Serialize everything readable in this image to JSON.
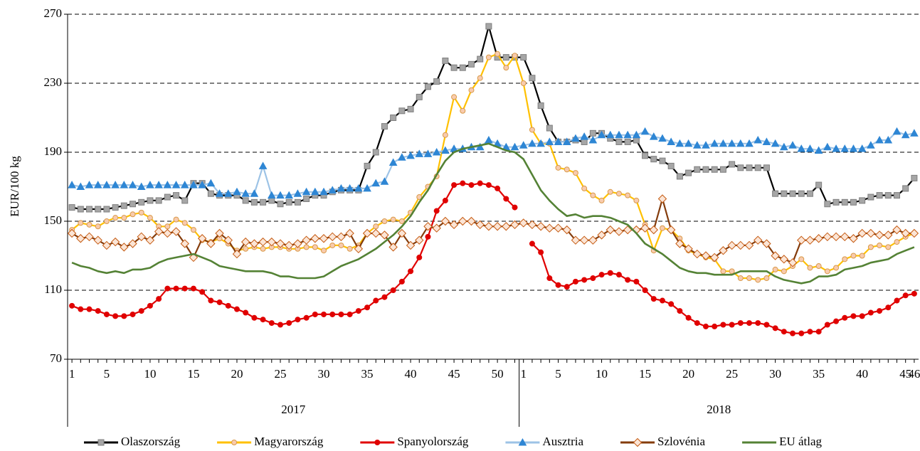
{
  "chart_data": {
    "type": "line",
    "y_label": "EUR/100 kg",
    "ylim": [
      70,
      270
    ],
    "yticks": [
      70,
      110,
      150,
      190,
      230,
      270
    ],
    "grid": true,
    "grid_style": "dashed",
    "legend": "bottom",
    "categories": [
      1,
      null,
      null,
      null,
      5,
      null,
      null,
      null,
      null,
      10,
      null,
      null,
      null,
      null,
      15,
      null,
      null,
      null,
      null,
      20,
      null,
      null,
      null,
      null,
      25,
      null,
      null,
      null,
      null,
      30,
      null,
      null,
      null,
      null,
      35,
      null,
      null,
      null,
      null,
      40,
      null,
      null,
      null,
      null,
      45,
      null,
      null,
      null,
      null,
      50,
      null,
      null,
      1,
      null,
      null,
      null,
      5,
      null,
      null,
      null,
      null,
      10,
      null,
      null,
      null,
      null,
      15,
      null,
      null,
      null,
      null,
      20,
      null,
      null,
      null,
      null,
      25,
      null,
      null,
      null,
      null,
      30,
      null,
      null,
      null,
      null,
      35,
      null,
      null,
      null,
      null,
      40,
      null,
      null,
      null,
      null,
      45,
      46
    ],
    "groups": [
      "2017",
      "2018"
    ],
    "series": [
      {
        "name": "Olaszország",
        "color": "#000000",
        "marker": "square",
        "marker_color": "#a6a6a6",
        "marker_edge": "#7f7f7f",
        "values": [
          158,
          157,
          157,
          157,
          157,
          158,
          159,
          160,
          161,
          162,
          162,
          164,
          165,
          162,
          172,
          172,
          166,
          165,
          165,
          165,
          162,
          161,
          161,
          162,
          160,
          161,
          161,
          163,
          165,
          165,
          167,
          168,
          168,
          168,
          182,
          190,
          205,
          210,
          214,
          215,
          222,
          228,
          231,
          243,
          239,
          239,
          241,
          244,
          263,
          245,
          245,
          245,
          245,
          233,
          217,
          204,
          196,
          196,
          197,
          196,
          201,
          201,
          198,
          196,
          196,
          197,
          188,
          186,
          185,
          182,
          176,
          178,
          180,
          180,
          180,
          180,
          183,
          181,
          181,
          181,
          181,
          166,
          166,
          166,
          166,
          166,
          171,
          160,
          161,
          161,
          161,
          162,
          164,
          165,
          165,
          165,
          169,
          175
        ]
      },
      {
        "name": "Magyarország",
        "color": "#ffc000",
        "marker": "circle",
        "marker_color": "#f8cbad",
        "marker_edge": "#d99a4a",
        "values": [
          145,
          149,
          148,
          147,
          150,
          152,
          152,
          154,
          155,
          152,
          147,
          147,
          151,
          149,
          145,
          139,
          138,
          140,
          137,
          133,
          134,
          135,
          134,
          135,
          135,
          134,
          134,
          135,
          135,
          133,
          136,
          136,
          134,
          136,
          143,
          147,
          150,
          151,
          150,
          155,
          164,
          170,
          176,
          200,
          222,
          214,
          226,
          233,
          245,
          247,
          239,
          246,
          230,
          203,
          195,
          195,
          181,
          180,
          178,
          169,
          165,
          162,
          167,
          166,
          165,
          162,
          148,
          133,
          146,
          145,
          140,
          133,
          131,
          129,
          128,
          121,
          121,
          117,
          117,
          116,
          117,
          122,
          121,
          124,
          128,
          123,
          124,
          121,
          123,
          128,
          130,
          130,
          135,
          136,
          135,
          138,
          141,
          143
        ]
      },
      {
        "name": "Spanyolország",
        "color": "#e00000",
        "marker": "circle",
        "marker_color": "#e00000",
        "marker_edge": "#e00000",
        "values": [
          101,
          99,
          99,
          98,
          96,
          95,
          95,
          96,
          98,
          101,
          105,
          111,
          111,
          111,
          111,
          109,
          104,
          103,
          101,
          99,
          97,
          94,
          93,
          91,
          90,
          91,
          93,
          94,
          96,
          96,
          96,
          96,
          96,
          98,
          100,
          104,
          106,
          110,
          115,
          121,
          129,
          141,
          156,
          162,
          171,
          172,
          171,
          172,
          171,
          169,
          163,
          158,
          null,
          137,
          132,
          117,
          113,
          112,
          115,
          116,
          117,
          119,
          120,
          119,
          116,
          115,
          110,
          105,
          104,
          102,
          98,
          94,
          91,
          89,
          89,
          90,
          90,
          91,
          91,
          91,
          90,
          88,
          86,
          85,
          85,
          86,
          86,
          90,
          92,
          94,
          95,
          95,
          97,
          98,
          100,
          104,
          107,
          108
        ]
      },
      {
        "name": "Ausztria",
        "color": "#9dc3e6",
        "marker": "triangle",
        "marker_color": "#2e86d4",
        "marker_edge": "#2e86d4",
        "values": [
          171,
          170,
          171,
          171,
          171,
          171,
          171,
          171,
          170,
          171,
          171,
          171,
          171,
          171,
          171,
          171,
          172,
          166,
          166,
          167,
          166,
          166,
          182,
          165,
          165,
          165,
          166,
          167,
          167,
          167,
          168,
          169,
          169,
          169,
          169,
          172,
          173,
          184,
          187,
          188,
          189,
          189,
          190,
          191,
          192,
          192,
          193,
          193,
          197,
          195,
          193,
          193,
          194,
          195,
          195,
          196,
          196,
          196,
          198,
          199,
          197,
          200,
          200,
          200,
          200,
          200,
          202,
          199,
          198,
          196,
          195,
          195,
          194,
          194,
          195,
          195,
          195,
          195,
          195,
          197,
          196,
          195,
          193,
          194,
          192,
          192,
          191,
          193,
          192,
          192,
          192,
          192,
          194,
          197,
          197,
          202,
          200,
          201
        ]
      },
      {
        "name": "Szlovénia",
        "color": "#843c0c",
        "marker": "diamond",
        "marker_color": "#fbe5d6",
        "marker_edge": "#c55a11",
        "values": [
          143,
          140,
          141,
          139,
          136,
          138,
          135,
          137,
          141,
          139,
          144,
          143,
          144,
          137,
          129,
          140,
          137,
          143,
          139,
          131,
          138,
          137,
          138,
          138,
          137,
          136,
          137,
          139,
          140,
          140,
          141,
          141,
          143,
          134,
          143,
          143,
          142,
          135,
          143,
          136,
          139,
          147,
          146,
          150,
          148,
          150,
          150,
          148,
          147,
          147,
          147,
          148,
          149,
          148,
          147,
          146,
          146,
          145,
          139,
          139,
          139,
          142,
          145,
          144,
          145,
          145,
          146,
          145,
          163,
          145,
          137,
          134,
          131,
          130,
          129,
          133,
          136,
          136,
          136,
          139,
          137,
          130,
          128,
          126,
          139,
          139,
          140,
          141,
          141,
          141,
          140,
          143,
          143,
          142,
          142,
          145,
          143,
          143
        ]
      },
      {
        "name": "EU átlag",
        "color": "#548235",
        "marker": "none",
        "values": [
          126,
          124,
          123,
          121,
          120,
          121,
          120,
          122,
          122,
          123,
          126,
          128,
          129,
          130,
          131,
          129,
          127,
          124,
          123,
          122,
          121,
          121,
          121,
          120,
          118,
          118,
          117,
          117,
          117,
          118,
          121,
          124,
          126,
          128,
          131,
          134,
          138,
          142,
          147,
          153,
          161,
          168,
          177,
          185,
          190,
          192,
          193,
          194,
          195,
          193,
          191,
          190,
          186,
          177,
          168,
          162,
          157,
          153,
          154,
          152,
          153,
          153,
          152,
          150,
          148,
          143,
          137,
          134,
          131,
          127,
          123,
          121,
          120,
          120,
          119,
          119,
          119,
          121,
          121,
          121,
          121,
          118,
          116,
          115,
          114,
          115,
          118,
          118,
          119,
          122,
          123,
          124,
          126,
          127,
          128,
          131,
          133,
          135
        ]
      }
    ]
  }
}
